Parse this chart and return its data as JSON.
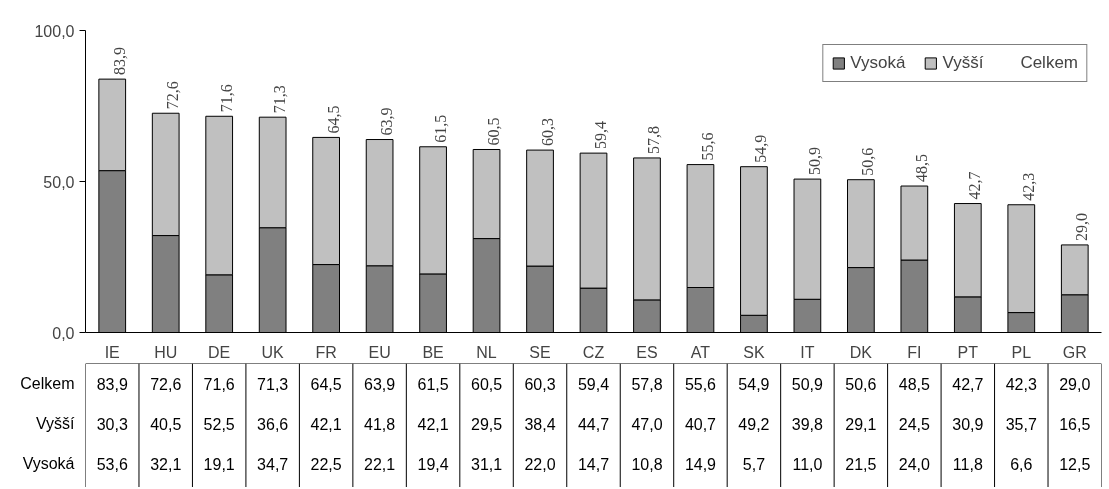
{
  "chart_data": {
    "type": "bar",
    "stacked": true,
    "legend": "top right",
    "data_labels": true,
    "categories": [
      "IE",
      "HU",
      "DE",
      "UK",
      "FR",
      "EU",
      "BE",
      "NL",
      "SE",
      "CZ",
      "ES",
      "AT",
      "SK",
      "IT",
      "DK",
      "FI",
      "PT",
      "PL",
      "GR"
    ],
    "ylim": [
      0,
      100
    ],
    "yticks": [
      {
        "value": 0,
        "label": "0,0"
      },
      {
        "value": 50,
        "label": "50,0"
      },
      {
        "value": 100,
        "label": "100,0"
      }
    ],
    "series": [
      {
        "name": "Vysoká",
        "color": "#808080",
        "values": [
          53.6,
          32.1,
          19.1,
          34.7,
          22.5,
          22.1,
          19.4,
          31.1,
          22.0,
          14.7,
          10.8,
          14.9,
          5.7,
          11.0,
          21.5,
          24.0,
          11.8,
          6.6,
          12.5
        ],
        "value_labels": [
          "53,6",
          "32,1",
          "19,1",
          "34,7",
          "22,5",
          "22,1",
          "19,4",
          "31,1",
          "22,0",
          "14,7",
          "10,8",
          "14,9",
          "5,7",
          "11,0",
          "21,5",
          "24,0",
          "11,8",
          "6,6",
          "12,5"
        ]
      },
      {
        "name": "Vyšší",
        "color": "#c0c0c0",
        "values": [
          30.3,
          40.5,
          52.5,
          36.6,
          42.1,
          41.8,
          42.1,
          29.5,
          38.4,
          44.7,
          47.0,
          40.7,
          49.2,
          39.8,
          29.1,
          24.5,
          30.9,
          35.7,
          16.5
        ],
        "value_labels": [
          "30,3",
          "40,5",
          "52,5",
          "36,6",
          "42,1",
          "41,8",
          "42,1",
          "29,5",
          "38,4",
          "44,7",
          "47,0",
          "40,7",
          "49,2",
          "39,8",
          "29,1",
          "24,5",
          "30,9",
          "35,7",
          "16,5"
        ]
      }
    ],
    "totals": [
      "83,9",
      "72,6",
      "71,6",
      "71,3",
      "64,5",
      "63,9",
      "61,5",
      "60,5",
      "60,3",
      "59,4",
      "57,8",
      "55,6",
      "54,9",
      "50,9",
      "50,6",
      "48,5",
      "42,7",
      "42,3",
      "29,0"
    ],
    "annotations": [
      "Celkem"
    ]
  }
}
